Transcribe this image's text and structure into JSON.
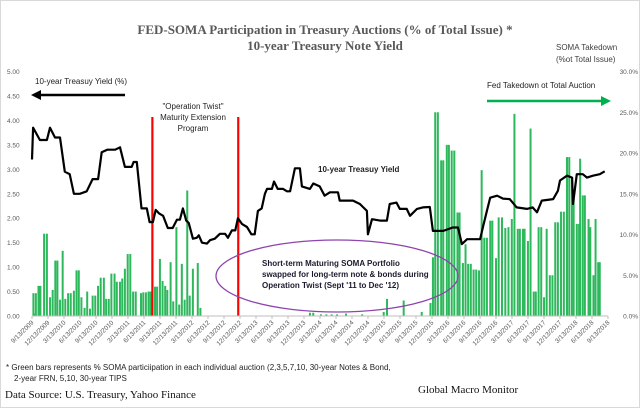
{
  "chart_data": {
    "type": "bar+line",
    "title": "FED-SOMA Participation in Treasury Auctions (% of Total Issue) *",
    "subtitle": "10-year Treasury  Note Yield",
    "y_left": {
      "ticks": [
        "0.00",
        "0.50",
        "1.00",
        "1.50",
        "2.00",
        "2.50",
        "3.00",
        "3.50",
        "4.00",
        "4.50",
        "5.00"
      ],
      "range": [
        0,
        5
      ]
    },
    "y_right": {
      "label_line1": "SOMA Takedown",
      "label_line2": "(%ot Total Issue)",
      "ticks": [
        "0.0%",
        "5.0%",
        "10.0%",
        "15.0%",
        "20.0%",
        "25.0%",
        "30.0%"
      ],
      "range": [
        0,
        30
      ]
    },
    "x_range": [
      "2009-09-13",
      "2018-09-13"
    ],
    "x_ticks": [
      "9/13/2009",
      "12/13/2009",
      "3/13/2010",
      "6/13/2010",
      "9/13/2010",
      "12/13/2010",
      "3/13/2011",
      "6/13/2011",
      "9/13/2011",
      "12/13/2011",
      "3/13/2012",
      "6/13/2012",
      "9/13/2012",
      "12/13/2012",
      "3/13/2013",
      "6/13/2013",
      "9/13/2013",
      "12/13/2013",
      "3/13/2014",
      "6/13/2014",
      "9/13/2014",
      "12/13/2014",
      "3/13/2015",
      "6/13/2015",
      "9/13/2015",
      "12/13/2015",
      "3/13/2016",
      "6/13/2016",
      "9/13/2016",
      "12/13/2016",
      "3/13/2017",
      "6/13/2017",
      "9/13/2017",
      "12/13/2017",
      "3/13/2018",
      "6/13/2018",
      "9/13/2018"
    ],
    "grid": false,
    "colors": {
      "yield": "#000000",
      "bars": "#2eb85c",
      "op_twist": "#ff0000",
      "ellipse": "#8e44ad",
      "arrow_green": "#00b050"
    },
    "yield_series": [
      [
        "2009-09-13",
        3.2
      ],
      [
        "2009-09-19",
        3.85
      ],
      [
        "2009-10-28",
        3.6
      ],
      [
        "2009-12-07",
        3.6
      ],
      [
        "2009-12-25",
        3.85
      ],
      [
        "2010-01-22",
        3.65
      ],
      [
        "2010-02-20",
        3.65
      ],
      [
        "2010-03-19",
        2.95
      ],
      [
        "2010-04-16",
        2.9
      ],
      [
        "2010-05-10",
        2.5
      ],
      [
        "2010-06-13",
        2.5
      ],
      [
        "2010-07-22",
        2.55
      ],
      [
        "2010-08-25",
        2.8
      ],
      [
        "2010-09-25",
        2.8
      ],
      [
        "2010-10-16",
        3.35
      ],
      [
        "2010-11-16",
        3.4
      ],
      [
        "2011-01-01",
        3.4
      ],
      [
        "2011-01-28",
        3.45
      ],
      [
        "2011-02-25",
        3.05
      ],
      [
        "2011-04-05",
        3.05
      ],
      [
        "2011-04-16",
        3.15
      ],
      [
        "2011-05-04",
        3.15
      ],
      [
        "2011-05-31",
        2.2
      ],
      [
        "2011-06-30",
        2.2
      ],
      [
        "2011-07-16",
        1.92
      ],
      [
        "2011-08-04",
        1.92
      ],
      [
        "2011-08-20",
        2.17
      ],
      [
        "2011-09-07",
        2.1
      ],
      [
        "2011-10-01",
        2.05
      ],
      [
        "2011-10-28",
        1.8
      ],
      [
        "2011-11-25",
        1.8
      ],
      [
        "2011-12-19",
        1.97
      ],
      [
        "2012-01-05",
        1.97
      ],
      [
        "2012-01-22",
        2.2
      ],
      [
        "2012-02-10",
        1.95
      ],
      [
        "2012-02-25",
        1.9
      ],
      [
        "2012-03-19",
        1.58
      ],
      [
        "2012-04-10",
        1.6
      ],
      [
        "2012-04-22",
        1.65
      ],
      [
        "2012-05-10",
        1.5
      ],
      [
        "2012-06-07",
        1.48
      ],
      [
        "2012-06-25",
        1.55
      ],
      [
        "2012-07-22",
        1.58
      ],
      [
        "2012-08-20",
        1.68
      ],
      [
        "2012-09-19",
        1.68
      ],
      [
        "2012-10-05",
        1.6
      ],
      [
        "2012-10-28",
        1.75
      ],
      [
        "2012-11-16",
        1.75
      ],
      [
        "2012-12-01",
        2.0
      ],
      [
        "2012-12-25",
        1.88
      ],
      [
        "2013-01-22",
        1.82
      ],
      [
        "2013-02-16",
        1.67
      ],
      [
        "2013-03-07",
        1.67
      ],
      [
        "2013-03-25",
        2.15
      ],
      [
        "2013-04-16",
        2.2
      ],
      [
        "2013-05-04",
        2.5
      ],
      [
        "2013-05-16",
        2.6
      ],
      [
        "2013-06-13",
        2.6
      ],
      [
        "2013-06-25",
        2.75
      ],
      [
        "2013-07-16",
        2.6
      ],
      [
        "2013-08-16",
        2.6
      ],
      [
        "2013-09-07",
        2.55
      ],
      [
        "2013-09-25",
        2.55
      ],
      [
        "2013-10-22",
        3.02
      ],
      [
        "2013-11-20",
        3.02
      ],
      [
        "2013-12-01",
        2.65
      ],
      [
        "2014-01-16",
        2.6
      ],
      [
        "2014-02-04",
        2.71
      ],
      [
        "2014-03-13",
        2.65
      ],
      [
        "2014-04-10",
        2.46
      ],
      [
        "2014-05-10",
        2.53
      ],
      [
        "2014-06-25",
        2.53
      ],
      [
        "2014-07-05",
        2.36
      ],
      [
        "2014-09-19",
        2.36
      ],
      [
        "2014-10-28",
        2.29
      ],
      [
        "2014-12-07",
        2.15
      ],
      [
        "2014-12-13",
        1.67
      ],
      [
        "2015-01-05",
        1.98
      ],
      [
        "2015-02-20",
        1.95
      ],
      [
        "2015-03-31",
        1.95
      ],
      [
        "2015-04-16",
        2.29
      ],
      [
        "2015-05-25",
        2.32
      ],
      [
        "2015-06-13",
        2.19
      ],
      [
        "2015-07-22",
        2.19
      ],
      [
        "2015-08-10",
        2.05
      ],
      [
        "2015-09-19",
        2.19
      ],
      [
        "2015-10-22",
        2.22
      ],
      [
        "2015-12-01",
        2.23
      ],
      [
        "2015-12-19",
        1.74
      ],
      [
        "2016-02-16",
        1.74
      ],
      [
        "2016-04-10",
        1.81
      ],
      [
        "2016-05-10",
        1.81
      ],
      [
        "2016-06-01",
        1.47
      ],
      [
        "2016-07-01",
        1.57
      ],
      [
        "2016-09-13",
        1.57
      ],
      [
        "2016-10-01",
        1.84
      ],
      [
        "2016-10-22",
        2.15
      ],
      [
        "2016-11-10",
        2.42
      ],
      [
        "2016-12-19",
        2.46
      ],
      [
        "2017-01-22",
        2.4
      ],
      [
        "2017-03-01",
        2.39
      ],
      [
        "2017-04-10",
        2.22
      ],
      [
        "2017-06-07",
        2.19
      ],
      [
        "2017-07-10",
        2.22
      ],
      [
        "2017-08-04",
        2.12
      ],
      [
        "2017-08-31",
        2.36
      ],
      [
        "2017-11-04",
        2.39
      ],
      [
        "2017-12-01",
        2.56
      ],
      [
        "2017-12-13",
        2.77
      ],
      [
        "2018-01-22",
        2.87
      ],
      [
        "2018-02-20",
        2.83
      ],
      [
        "2018-02-25",
        2.29
      ],
      [
        "2018-03-19",
        2.9
      ],
      [
        "2018-04-22",
        2.9
      ],
      [
        "2018-05-16",
        2.83
      ],
      [
        "2018-06-19",
        2.87
      ],
      [
        "2018-07-28",
        2.9
      ],
      [
        "2018-08-25",
        2.96
      ]
    ],
    "soma_bars_pct": [
      [
        "2009-09-21",
        2.8
      ],
      [
        "2009-10-01",
        0.3
      ],
      [
        "2009-10-05",
        2.8
      ],
      [
        "2009-10-20",
        3.7
      ],
      [
        "2009-10-31",
        3.7
      ],
      [
        "2009-11-21",
        10.1
      ],
      [
        "2009-12-07",
        10.1
      ],
      [
        "2009-12-25",
        2.3
      ],
      [
        "2010-01-09",
        3.2
      ],
      [
        "2010-01-24",
        6.8
      ],
      [
        "2010-02-05",
        6.8
      ],
      [
        "2010-02-20",
        2.0
      ],
      [
        "2010-03-07",
        8.0
      ],
      [
        "2010-03-22",
        2.1
      ],
      [
        "2010-04-07",
        2.8
      ],
      [
        "2010-04-22",
        2.8
      ],
      [
        "2010-05-10",
        3.1
      ],
      [
        "2010-05-25",
        5.6
      ],
      [
        "2010-06-07",
        5.6
      ],
      [
        "2010-06-22",
        2.3
      ],
      [
        "2010-07-10",
        1.0
      ],
      [
        "2010-07-25",
        3.0
      ],
      [
        "2010-08-10",
        0.9
      ],
      [
        "2010-08-25",
        2.5
      ],
      [
        "2010-09-09",
        2.5
      ],
      [
        "2010-09-25",
        3.7
      ],
      [
        "2010-10-10",
        4.7
      ],
      [
        "2010-10-28",
        4.7
      ],
      [
        "2010-11-10",
        2.1
      ],
      [
        "2010-11-25",
        2.1
      ],
      [
        "2010-12-10",
        5.2
      ],
      [
        "2010-12-28",
        5.2
      ],
      [
        "2011-01-10",
        4.2
      ],
      [
        "2011-01-28",
        4.2
      ],
      [
        "2011-02-10",
        4.6
      ],
      [
        "2011-02-25",
        5.8
      ],
      [
        "2011-03-13",
        7.6
      ],
      [
        "2011-03-28",
        7.6
      ],
      [
        "2011-04-13",
        3.0
      ],
      [
        "2011-04-28",
        3.0
      ],
      [
        "2011-05-28",
        2.8
      ],
      [
        "2011-06-10",
        2.9
      ],
      [
        "2011-06-25",
        2.9
      ],
      [
        "2011-07-10",
        3.0
      ],
      [
        "2011-07-22",
        3.0
      ],
      [
        "2011-08-16",
        3.6
      ],
      [
        "2011-08-28",
        3.6
      ],
      [
        "2011-09-13",
        7.0
      ],
      [
        "2011-09-28",
        4.3
      ],
      [
        "2011-10-13",
        3.7
      ],
      [
        "2011-10-25",
        3.2
      ],
      [
        "2011-11-13",
        6.6
      ],
      [
        "2011-11-28",
        1.8
      ],
      [
        "2011-12-16",
        10.9
      ],
      [
        "2012-01-01",
        1.4
      ],
      [
        "2012-01-16",
        6.4
      ],
      [
        "2012-02-01",
        2.0
      ],
      [
        "2012-02-16",
        15.4
      ],
      [
        "2012-03-01",
        2.5
      ],
      [
        "2012-03-19",
        5.8
      ],
      [
        "2012-04-16",
        6.5
      ],
      [
        "2012-05-01",
        1.0
      ],
      [
        "2014-01-16",
        0.4
      ],
      [
        "2014-02-04",
        0.4
      ],
      [
        "2014-03-20",
        0.2
      ],
      [
        "2014-04-20",
        0.2
      ],
      [
        "2014-05-20",
        0.2
      ],
      [
        "2014-06-20",
        0.2
      ],
      [
        "2014-08-10",
        0.3
      ],
      [
        "2014-11-10",
        0.2
      ],
      [
        "2015-03-13",
        0.5
      ],
      [
        "2015-04-01",
        2.1
      ],
      [
        "2015-07-05",
        1.9
      ],
      [
        "2015-10-16",
        0.5
      ],
      [
        "2015-12-05",
        1.6
      ],
      [
        "2015-12-19",
        7.2
      ],
      [
        "2016-01-01",
        25
      ],
      [
        "2016-01-16",
        25
      ],
      [
        "2016-02-04",
        19.1
      ],
      [
        "2016-02-16",
        19.1
      ],
      [
        "2016-03-07",
        21
      ],
      [
        "2016-03-19",
        21
      ],
      [
        "2016-04-04",
        20.3
      ],
      [
        "2016-04-19",
        20.3
      ],
      [
        "2016-05-07",
        12.7
      ],
      [
        "2016-05-19",
        12.7
      ],
      [
        "2016-06-07",
        6.5
      ],
      [
        "2016-06-22",
        8.8
      ],
      [
        "2016-07-07",
        6.4
      ],
      [
        "2016-07-22",
        6.4
      ],
      [
        "2016-08-07",
        5.7
      ],
      [
        "2016-08-22",
        5.7
      ],
      [
        "2016-09-07",
        5.6
      ],
      [
        "2016-09-22",
        17.9
      ],
      [
        "2016-10-07",
        9.6
      ],
      [
        "2016-10-22",
        9.6
      ],
      [
        "2016-11-10",
        11.7
      ],
      [
        "2016-11-22",
        11.7
      ],
      [
        "2016-12-13",
        7.1
      ],
      [
        "2016-12-28",
        12.1
      ],
      [
        "2017-01-16",
        12.1
      ],
      [
        "2017-02-04",
        10.8
      ],
      [
        "2017-02-22",
        10.9
      ],
      [
        "2017-03-13",
        11.9
      ],
      [
        "2017-03-28",
        24.8
      ],
      [
        "2017-04-16",
        10.7
      ],
      [
        "2017-04-28",
        10.7
      ],
      [
        "2017-05-16",
        10.7
      ],
      [
        "2017-05-25",
        10.7
      ],
      [
        "2017-06-13",
        9.2
      ],
      [
        "2017-06-28",
        23
      ],
      [
        "2017-07-16",
        3
      ],
      [
        "2017-07-28",
        3
      ],
      [
        "2017-08-13",
        10.9
      ],
      [
        "2017-08-28",
        10.9
      ],
      [
        "2017-09-13",
        2.3
      ],
      [
        "2017-09-28",
        10.7
      ],
      [
        "2017-10-16",
        5
      ],
      [
        "2017-10-31",
        5
      ],
      [
        "2017-11-16",
        11.5
      ],
      [
        "2017-12-01",
        11.5
      ],
      [
        "2017-12-19",
        12.8
      ],
      [
        "2018-01-04",
        12.8
      ],
      [
        "2018-01-22",
        19.5
      ],
      [
        "2018-02-04",
        19.5
      ],
      [
        "2018-02-19",
        16.7
      ],
      [
        "2018-03-01",
        14.8
      ],
      [
        "2018-03-19",
        11.3
      ],
      [
        "2018-04-01",
        11.3
      ],
      [
        "2018-04-07",
        19.3
      ],
      [
        "2018-04-22",
        14.8
      ],
      [
        "2018-05-04",
        14.8
      ],
      [
        "2018-05-25",
        11.9
      ],
      [
        "2018-06-04",
        10.9
      ],
      [
        "2018-06-22",
        5
      ],
      [
        "2018-07-04",
        11.9
      ],
      [
        "2018-07-19",
        6.6
      ],
      [
        "2018-07-28",
        6.6
      ]
    ],
    "op_twist_lines": [
      "2011-08-01",
      "2012-12-03"
    ],
    "annotations": {
      "left_arrow_label": "10-year Treasuy Yield (%)",
      "right_arrow_label": "Fed Takedown ot Total Auction",
      "yield_label": "10-year Treasuy Yield",
      "op_twist_line1": "\"Operation Twist\"",
      "op_twist_line2": "Maturity Extension",
      "op_twist_line3": "Program",
      "ellipse_line1": "Short-term Maturing SOMA Portfolio",
      "ellipse_line2": "swapped for long-term note & bonds during",
      "ellipse_line3": "Operation Twist (Sept '11 to Dec '12)"
    }
  },
  "footnote_line1": "* Green bars represents % SOMA particiipation in each individual auction (2,3,5,7,10, 30-year Notes & Bond,",
  "footnote_line2": "2-year FRN, 5,10,  30-year TIPS",
  "source": "Data Source: U.S. Treasury,  Yahoo Finance",
  "brand": "Global Macro Monitor"
}
